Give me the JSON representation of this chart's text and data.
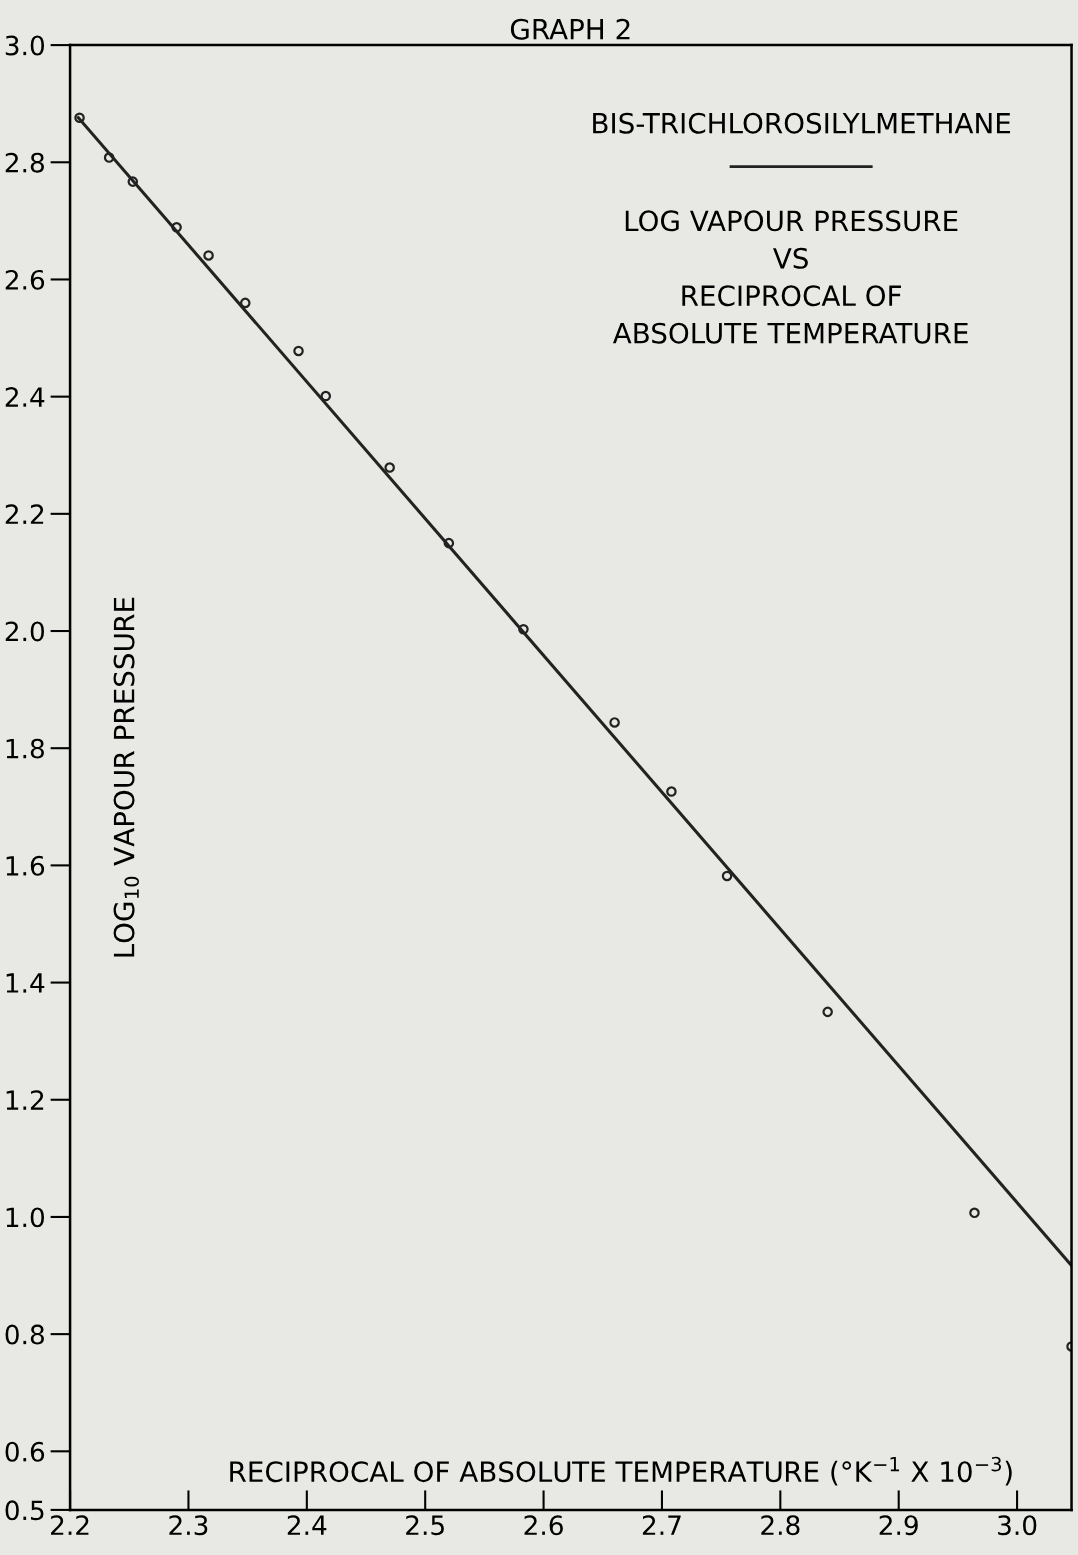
{
  "chart_data": {
    "type": "scatter",
    "title": "GRAPH 2",
    "xlabel": "RECIPROCAL OF ABSOLUTE TEMPERATURE (°K$^{−1}$ X 10$^{−3}$)",
    "ylabel": "LOG$_{10}$ VAPOUR PRESSURE",
    "annotations": [
      "BIS-TRICHLOROSILYLMETHANE",
      "LOG VAPOUR PRESSURE\nVS\nRECIPROCAL OF\nABSOLUTE TEMPERATURE"
    ],
    "series": [
      {
        "marker": "circle",
        "color": "#222222",
        "x": [
          2.208,
          2.233,
          2.253,
          2.29,
          2.317,
          2.348,
          2.393,
          2.416,
          2.47,
          2.52,
          2.583,
          2.66,
          2.708,
          2.755,
          2.84,
          2.964,
          3.046
        ],
        "values": [
          2.876,
          2.808,
          2.767,
          2.689,
          2.641,
          2.56,
          2.478,
          2.401,
          2.279,
          2.15,
          2.003,
          1.844,
          1.726,
          1.582,
          1.35,
          1.007,
          0.779
        ]
      },
      {
        "type": "line",
        "color": "#222222",
        "x": [
          2.207,
          3.046
        ],
        "values": [
          2.876,
          0.917
        ]
      }
    ],
    "xlim": [
      2.2,
      3.046
    ],
    "xticks": [
      {
        "value": 2.2,
        "label": "2.2"
      },
      {
        "value": 2.3,
        "label": "2.3"
      },
      {
        "value": 2.4,
        "label": "2.4"
      },
      {
        "value": 2.5,
        "label": "2.5"
      },
      {
        "value": 2.6,
        "label": "2.6"
      },
      {
        "value": 2.7,
        "label": "2.7"
      },
      {
        "value": 2.8,
        "label": "2.8"
      },
      {
        "value": 2.9,
        "label": "2.9"
      },
      {
        "value": 3.0,
        "label": "3.0"
      }
    ],
    "ylim": [
      0.5,
      3.0
    ],
    "yticks": [
      {
        "value": 0.5,
        "label": "0.5"
      },
      {
        "value": 0.6,
        "label": "0.6"
      },
      {
        "value": 0.8,
        "label": "0.8"
      },
      {
        "value": 1.0,
        "label": "1.0"
      },
      {
        "value": 1.2,
        "label": "1.2"
      },
      {
        "value": 1.4,
        "label": "1.4"
      },
      {
        "value": 1.6,
        "label": "1.6"
      },
      {
        "value": 1.8,
        "label": "1.8"
      },
      {
        "value": 2.0,
        "label": "2.0"
      },
      {
        "value": 2.2,
        "label": "2.2"
      },
      {
        "value": 2.4,
        "label": "2.4"
      },
      {
        "value": 2.6,
        "label": "2.6"
      },
      {
        "value": 2.8,
        "label": "2.8"
      },
      {
        "value": 3.0,
        "label": "3.0"
      }
    ],
    "grid": false
  }
}
